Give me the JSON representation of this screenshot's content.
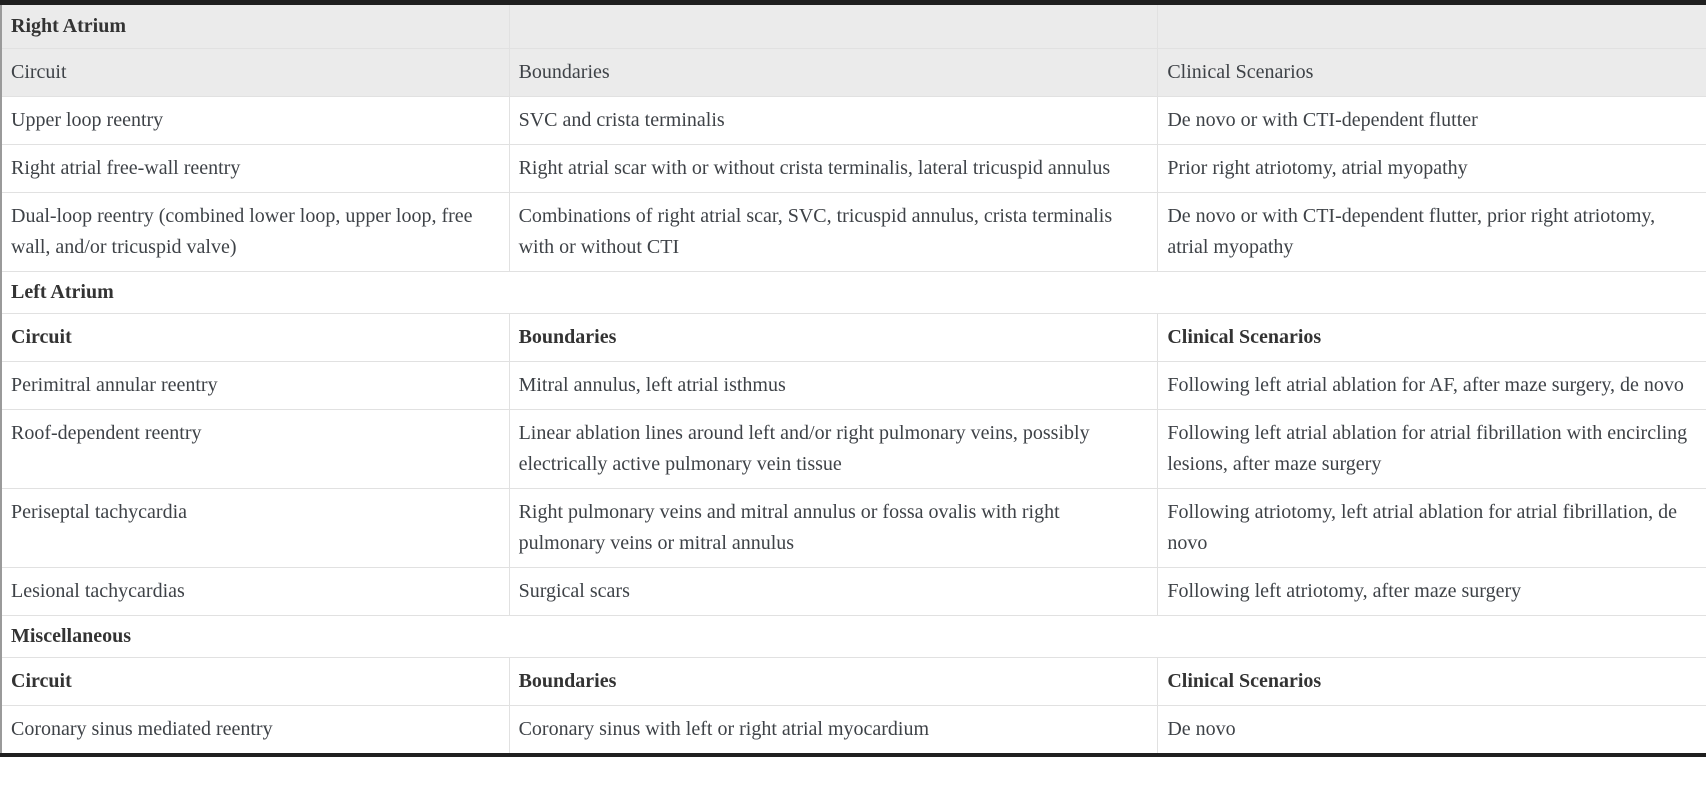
{
  "table": {
    "colors": {
      "header_bg": "#ebebeb",
      "border_light": "#e1e1e1",
      "border_heavy": "#1f1f1f",
      "border_left_col": "#9a9a9a",
      "text": "#3e4247",
      "text_bold": "#333333"
    },
    "header_labels": {
      "circuit": "Circuit",
      "boundaries": "Boundaries",
      "clinical": "Clinical Scenarios"
    },
    "sections": [
      {
        "title": "Right Atrium",
        "variant": "gray",
        "header_bold": false,
        "rows": [
          [
            "Upper loop reentry",
            "SVC and crista terminalis",
            "De novo or with CTI-dependent flutter"
          ],
          [
            "Right atrial free-wall reentry",
            "Right atrial scar with or without crista terminalis, lateral tricuspid annulus",
            "Prior right atriotomy, atrial myopathy"
          ],
          [
            "Dual-loop reentry (combined lower loop, upper loop, free wall, and/or tricuspid valve)",
            "Combinations of right atrial scar, SVC, tricuspid annulus, crista terminalis with or without CTI",
            "De novo or with CTI-dependent flutter, prior right atriotomy, atrial myopathy"
          ]
        ]
      },
      {
        "title": "Left Atrium",
        "variant": "plain",
        "header_bold": true,
        "rows": [
          [
            "Perimitral annular reentry",
            "Mitral annulus, left atrial isthmus",
            "Following left atrial ablation for AF, after maze surgery, de novo"
          ],
          [
            "Roof-dependent reentry",
            "Linear ablation lines around left and/or right pulmonary veins, possibly electrically active pulmonary vein tissue",
            "Following left atrial ablation for atrial fibrillation with encircling lesions, after maze surgery"
          ],
          [
            "Periseptal tachycardia",
            "Right pulmonary veins and mitral annulus or fossa ovalis with right pulmonary veins or mitral annulus",
            "Following atriotomy, left atrial ablation for atrial fibrillation, de novo"
          ],
          [
            "Lesional tachycardias",
            "Surgical scars",
            "Following left atriotomy, after maze surgery"
          ]
        ]
      },
      {
        "title": "Miscellaneous",
        "variant": "plain",
        "header_bold": true,
        "rows": [
          [
            "Coronary sinus mediated reentry",
            "Coronary sinus with left or right atrial myocardium",
            "De novo"
          ]
        ]
      }
    ]
  }
}
